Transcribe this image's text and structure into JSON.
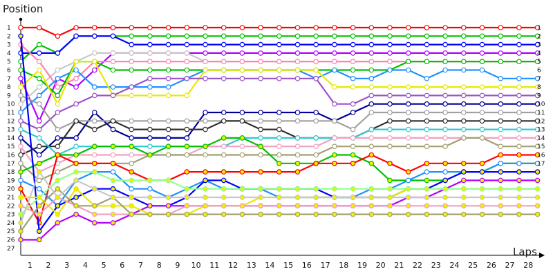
{
  "chart_data": {
    "type": "line",
    "ylabel": "Position",
    "xlabel": "Laps",
    "x_ticks": [
      "1",
      "2",
      "3",
      "4",
      "5",
      "6",
      "7",
      "8",
      "9",
      "10",
      "11",
      "12",
      "13",
      "14",
      "15",
      "16",
      "17",
      "18",
      "19",
      "20",
      "21",
      "22",
      "23",
      "24",
      "25",
      "26",
      "27",
      "28"
    ],
    "y_ticks": [
      "1",
      "2",
      "3",
      "4",
      "5",
      "6",
      "7",
      "8",
      "9",
      "10",
      "11",
      "12",
      "13",
      "14",
      "15",
      "16",
      "17",
      "18",
      "19",
      "20",
      "21",
      "22",
      "23",
      "24",
      "25",
      "26",
      "27"
    ],
    "right_ticks": [
      "1",
      "2",
      "3",
      "4",
      "5",
      "6",
      "7",
      "8",
      "9",
      "10",
      "11",
      "12",
      "13",
      "14",
      "15",
      "16",
      "17"
    ],
    "xlim": [
      0,
      29
    ],
    "ylim": [
      27,
      1
    ],
    "x_start": 0,
    "grid": false,
    "series": [
      {
        "color": "#ff0000",
        "marker": "white",
        "values": [
          1,
          1,
          2,
          1,
          1,
          1,
          1,
          1,
          1,
          1,
          1,
          1,
          1,
          1,
          1,
          1,
          1,
          1,
          1,
          1,
          1,
          1,
          1,
          1,
          1,
          1,
          1,
          1,
          1
        ]
      },
      {
        "color": "#00c000",
        "marker": "white",
        "values": [
          5,
          3,
          4,
          2,
          2,
          2,
          2,
          2,
          2,
          2,
          2,
          2,
          2,
          2,
          2,
          2,
          2,
          2,
          2,
          2,
          2,
          2,
          2,
          2,
          2,
          2,
          2,
          2,
          2
        ]
      },
      {
        "color": "#0000ff",
        "marker": "white",
        "values": [
          4,
          4,
          4,
          2,
          2,
          2,
          3,
          3,
          3,
          3,
          3,
          3,
          3,
          3,
          3,
          3,
          3,
          3,
          3,
          3,
          3,
          3,
          3,
          3,
          3,
          3,
          3,
          3,
          3
        ]
      },
      {
        "color": "#b000ff",
        "marker": "white",
        "values": [
          7,
          12,
          7,
          8,
          6,
          4,
          4,
          4,
          4,
          4,
          4,
          4,
          4,
          4,
          4,
          4,
          4,
          4,
          4,
          4,
          4,
          4,
          4,
          4,
          4,
          4,
          4,
          4,
          4
        ]
      },
      {
        "color": "#c8c8c8",
        "marker": "white",
        "values": [
          10,
          8,
          6,
          5,
          4,
          4,
          4,
          4,
          4,
          4,
          5,
          5,
          5,
          5,
          5,
          5,
          5,
          5,
          5,
          5,
          5,
          5,
          5,
          5,
          5,
          5,
          5,
          5,
          5
        ]
      },
      {
        "color": "#ff80b0",
        "marker": "white",
        "values": [
          3,
          5,
          8,
          7,
          5,
          5,
          5,
          5,
          5,
          5,
          5,
          5,
          5,
          5,
          5,
          5,
          5,
          5,
          5,
          5,
          5,
          5,
          5,
          5,
          5,
          5,
          5,
          5,
          5
        ]
      },
      {
        "color": "#00c000",
        "marker": "white",
        "values": [
          6,
          7,
          9,
          5,
          5,
          6,
          6,
          6,
          6,
          6,
          6,
          6,
          6,
          6,
          6,
          6,
          6,
          6,
          6,
          6,
          6,
          5,
          5,
          5,
          5,
          5,
          5,
          5,
          5
        ]
      },
      {
        "color": "#2090ff",
        "marker": "white",
        "values": [
          11,
          9,
          7,
          6,
          8,
          8,
          8,
          8,
          8,
          7,
          6,
          6,
          6,
          6,
          6,
          6,
          7,
          6,
          7,
          7,
          6,
          6,
          7,
          6,
          6,
          6,
          7,
          7,
          7
        ]
      },
      {
        "color": "#e8e800",
        "marker": "white",
        "values": [
          8,
          6,
          10,
          5,
          5,
          9,
          9,
          9,
          9,
          9,
          6,
          6,
          6,
          6,
          6,
          6,
          6,
          8,
          8,
          8,
          8,
          8,
          8,
          8,
          8,
          8,
          8,
          8,
          8
        ]
      },
      {
        "color": "#9a52c8",
        "marker": "white",
        "values": [
          12,
          13,
          11,
          10,
          9,
          9,
          8,
          7,
          7,
          7,
          7,
          7,
          7,
          7,
          7,
          7,
          7,
          10,
          10,
          9,
          9,
          9,
          9,
          9,
          9,
          9,
          9,
          9,
          9
        ]
      },
      {
        "color": "#000099",
        "marker": "white",
        "values": [
          14,
          16,
          14,
          14,
          11,
          13,
          14,
          14,
          14,
          14,
          11,
          11,
          11,
          11,
          11,
          11,
          11,
          12,
          11,
          10,
          10,
          10,
          10,
          10,
          10,
          10,
          10,
          10,
          10
        ]
      },
      {
        "color": "#a0a0a0",
        "marker": "white",
        "values": [
          9,
          10,
          13,
          12,
          12,
          12,
          12,
          12,
          12,
          12,
          12,
          12,
          12,
          12,
          12,
          12,
          12,
          12,
          13,
          11,
          11,
          11,
          11,
          11,
          11,
          11,
          11,
          11,
          11
        ]
      },
      {
        "color": "#303030",
        "marker": "white",
        "values": [
          16,
          15,
          15,
          12,
          13,
          12,
          13,
          13,
          13,
          13,
          13,
          12,
          12,
          13,
          13,
          14,
          14,
          14,
          14,
          13,
          12,
          12,
          12,
          12,
          12,
          12,
          12,
          12,
          12
        ]
      },
      {
        "color": "#30c8d0",
        "marker": "white",
        "values": [
          13,
          14,
          16,
          15,
          15,
          15,
          15,
          15,
          15,
          15,
          15,
          15,
          14,
          14,
          14,
          14,
          14,
          14,
          14,
          13,
          13,
          13,
          13,
          13,
          13,
          13,
          13,
          13,
          13
        ]
      },
      {
        "color": "#f0a0c0",
        "marker": "white",
        "values": [
          15,
          18,
          17,
          16,
          16,
          16,
          16,
          16,
          16,
          16,
          15,
          15,
          15,
          15,
          15,
          15,
          15,
          14,
          14,
          14,
          14,
          14,
          14,
          14,
          14,
          14,
          14,
          14,
          14
        ]
      },
      {
        "color": "#a0a070",
        "marker": "white",
        "values": [
          17,
          19,
          18,
          17,
          17,
          17,
          17,
          16,
          16,
          16,
          16,
          16,
          16,
          16,
          16,
          16,
          16,
          15,
          15,
          15,
          15,
          15,
          15,
          15,
          14,
          14,
          15,
          15,
          15
        ]
      },
      {
        "color": "#00c000",
        "marker": "yellow",
        "values": [
          18,
          17,
          16,
          16,
          15,
          15,
          15,
          16,
          15,
          15,
          15,
          14,
          14,
          15,
          17,
          17,
          17,
          16,
          16,
          17,
          19,
          19,
          19,
          19,
          18,
          18,
          17,
          17,
          17
        ]
      },
      {
        "color": "#ff0000",
        "marker": "yellow",
        "values": [
          20,
          24,
          16,
          17,
          17,
          17,
          18,
          19,
          19,
          18,
          18,
          18,
          18,
          18,
          18,
          18,
          17,
          17,
          17,
          16,
          17,
          18,
          17,
          17,
          17,
          17,
          16,
          16,
          16
        ]
      },
      {
        "color": "#2090ff",
        "marker": "white",
        "values": [
          19,
          20,
          22,
          19,
          18,
          18,
          20,
          20,
          21,
          20,
          19,
          20,
          20,
          20,
          21,
          21,
          21,
          21,
          21,
          20,
          20,
          19,
          18,
          18,
          18,
          18,
          17,
          17,
          17
        ]
      },
      {
        "color": "#0000ff",
        "marker": "yellow",
        "values": [
          2,
          25,
          22,
          21,
          20,
          20,
          21,
          22,
          22,
          21,
          19,
          19,
          20,
          20,
          20,
          20,
          20,
          21,
          21,
          21,
          21,
          20,
          20,
          19,
          18,
          18,
          18,
          18,
          18
        ]
      },
      {
        "color": "#b000ff",
        "marker": "yellow",
        "values": [
          26,
          26,
          24,
          23,
          24,
          24,
          23,
          22,
          22,
          22,
          22,
          22,
          22,
          22,
          22,
          22,
          22,
          22,
          22,
          22,
          22,
          21,
          21,
          20,
          19,
          19,
          19,
          19,
          19
        ]
      },
      {
        "color": "#e8e800",
        "marker": "yellow",
        "values": [
          21,
          21,
          23,
          20,
          22,
          22,
          22,
          23,
          23,
          23,
          22,
          22,
          22,
          21,
          21,
          21,
          21,
          21,
          21,
          21,
          21,
          20,
          20,
          20,
          20,
          20,
          20,
          20,
          20
        ]
      },
      {
        "color": "#f0a0c0",
        "marker": "yellow",
        "values": [
          22,
          23,
          21,
          22,
          23,
          23,
          23,
          23,
          23,
          22,
          22,
          22,
          22,
          22,
          22,
          22,
          22,
          22,
          22,
          22,
          22,
          22,
          22,
          22,
          22,
          22,
          22,
          22,
          22
        ]
      },
      {
        "color": "#a0a070",
        "marker": "yellow",
        "values": [
          25,
          22,
          20,
          22,
          22,
          21,
          23,
          23,
          23,
          23,
          23,
          23,
          23,
          23,
          23,
          23,
          23,
          23,
          23,
          23,
          23,
          23,
          23,
          23,
          23,
          23,
          23,
          23,
          23
        ]
      },
      {
        "color": "#90ff90",
        "marker": "yellow",
        "values": [
          23,
          21,
          19,
          18,
          18,
          19,
          19,
          19,
          19,
          20,
          20,
          20,
          20,
          20,
          20,
          20,
          20,
          20,
          20,
          20,
          20,
          20,
          20,
          20,
          20,
          20,
          20,
          20,
          20
        ]
      },
      {
        "color": "#c8c8c8",
        "marker": "yellow",
        "values": [
          24,
          18,
          21,
          19,
          20,
          21,
          21,
          21,
          21,
          21,
          21,
          21,
          21,
          21,
          21,
          21,
          21,
          21,
          21,
          21,
          21,
          21,
          21,
          21,
          21,
          21,
          21,
          21,
          21
        ]
      }
    ]
  }
}
